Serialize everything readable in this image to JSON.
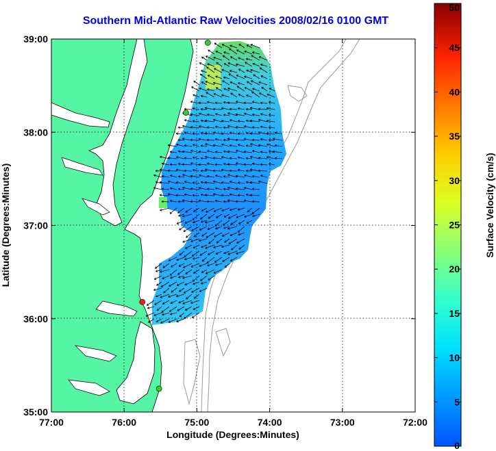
{
  "title": "Southern Mid-Atlantic Raw Velocities 2008/02/16 0100 GMT",
  "x_axis": {
    "label": "Longitude (Degrees:Minutes)",
    "ticks": [
      "77:00",
      "76:00",
      "75:00",
      "74:00",
      "73:00",
      "72:00"
    ]
  },
  "y_axis": {
    "label": "Latitude (Degrees:Minutes)",
    "ticks": [
      "39:00",
      "38:00",
      "37:00",
      "36:00",
      "35:00"
    ]
  },
  "colorbar": {
    "label": "Surface Velocity (cm/s)",
    "min": 0,
    "max": 50,
    "ticks": [
      "50",
      "45",
      "40",
      "35",
      "30",
      "25",
      "20",
      "15",
      "10",
      "5",
      "0"
    ],
    "colormap": "jet"
  },
  "colors": {
    "land": "#55f5a5",
    "coast_line": "#000000",
    "bathymetry": "#999999",
    "title": "#0000ee",
    "station_green": "#33cc33",
    "station_red": "#ee2222"
  },
  "map": {
    "lon_range": [
      -77,
      -72
    ],
    "lat_range": [
      35,
      39
    ],
    "grid": "dotted",
    "stations": [
      {
        "status": "active",
        "lat": 38.96,
        "lon": -74.85
      },
      {
        "status": "active",
        "lat": 38.21,
        "lon": -75.15
      },
      {
        "status": "offline",
        "lat": 36.18,
        "lon": -75.75
      },
      {
        "status": "active",
        "lat": 35.25,
        "lon": -75.52
      }
    ]
  }
}
